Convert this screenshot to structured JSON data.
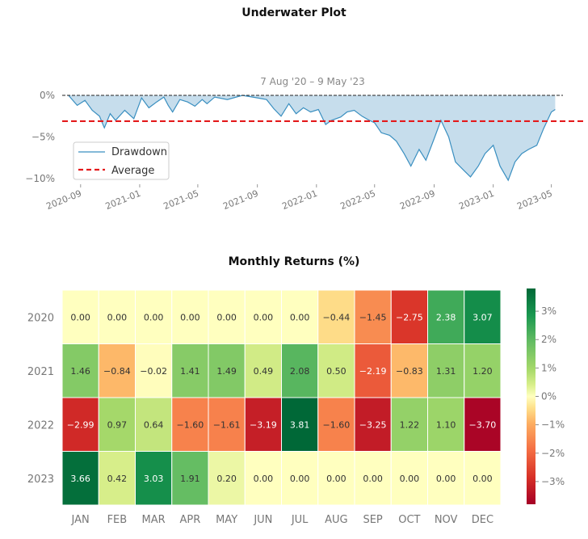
{
  "chart_data": [
    {
      "type": "area",
      "title": "Underwater Plot",
      "subtitle": "7 Aug '20 –  9 May '23",
      "xlabel": "",
      "ylabel": "",
      "y_ticks": [
        "0%",
        "−5%",
        "−10%"
      ],
      "ylim": [
        -10.5,
        0.5
      ],
      "x_ticks": [
        "2020-09",
        "2021-01",
        "2021-05",
        "2021-09",
        "2022-01",
        "2022-05",
        "2022-09",
        "2023-01",
        "2023-05"
      ],
      "legend": [
        "Drawdown",
        "Average"
      ],
      "legend_position": "lower-left",
      "average": -3.1,
      "series": [
        {
          "name": "Drawdown",
          "x": [
            "2020-08-07",
            "2020-08-25",
            "2020-09-10",
            "2020-09-25",
            "2020-10-10",
            "2020-10-20",
            "2020-11-01",
            "2020-11-12",
            "2020-12-01",
            "2020-12-20",
            "2021-01-05",
            "2021-01-20",
            "2021-02-05",
            "2021-02-20",
            "2021-03-01",
            "2021-03-10",
            "2021-03-25",
            "2021-04-10",
            "2021-04-25",
            "2021-05-10",
            "2021-05-20",
            "2021-06-05",
            "2021-07-01",
            "2021-08-01",
            "2021-09-01",
            "2021-09-20",
            "2021-10-05",
            "2021-10-20",
            "2021-11-05",
            "2021-11-20",
            "2021-12-05",
            "2021-12-20",
            "2022-01-05",
            "2022-01-20",
            "2022-02-01",
            "2022-02-20",
            "2022-03-05",
            "2022-03-20",
            "2022-04-05",
            "2022-04-20",
            "2022-05-01",
            "2022-05-15",
            "2022-06-01",
            "2022-06-15",
            "2022-07-01",
            "2022-07-15",
            "2022-08-01",
            "2022-08-15",
            "2022-09-01",
            "2022-09-15",
            "2022-10-01",
            "2022-10-15",
            "2022-11-01",
            "2022-11-15",
            "2022-12-01",
            "2022-12-15",
            "2023-01-01",
            "2023-01-15",
            "2023-02-01",
            "2023-02-15",
            "2023-03-01",
            "2023-03-15",
            "2023-04-01",
            "2023-04-15",
            "2023-05-01",
            "2023-05-09"
          ],
          "values": [
            0,
            -1.2,
            -0.6,
            -1.8,
            -2.5,
            -3.9,
            -2.2,
            -3.0,
            -1.8,
            -2.8,
            -0.3,
            -1.5,
            -0.8,
            -0.2,
            -1.2,
            -2.0,
            -0.5,
            -0.8,
            -1.3,
            -0.5,
            -1.0,
            -0.2,
            -0.5,
            0,
            -0.3,
            -0.5,
            -1.6,
            -2.5,
            -1.0,
            -2.2,
            -1.5,
            -2.0,
            -1.7,
            -3.5,
            -3.0,
            -2.6,
            -2.0,
            -1.8,
            -2.5,
            -3.0,
            -3.3,
            -4.5,
            -4.8,
            -5.5,
            -7.0,
            -8.5,
            -6.5,
            -7.8,
            -5.2,
            -3.0,
            -5.0,
            -8.0,
            -9.0,
            -9.8,
            -8.5,
            -7.0,
            -6.0,
            -8.5,
            -10.2,
            -8.0,
            -7.0,
            -6.5,
            -6.0,
            -4.0,
            -2.0,
            -1.7
          ]
        }
      ]
    },
    {
      "type": "heatmap",
      "title": "Monthly Returns (%)",
      "categories": [
        "JAN",
        "FEB",
        "MAR",
        "APR",
        "MAY",
        "JUN",
        "JUL",
        "AUG",
        "SEP",
        "OCT",
        "NOV",
        "DEC"
      ],
      "rows": [
        "2020",
        "2021",
        "2022",
        "2023"
      ],
      "values": [
        [
          0.0,
          0.0,
          0.0,
          0.0,
          0.0,
          0.0,
          0.0,
          -0.44,
          -1.45,
          -2.75,
          2.38,
          3.07
        ],
        [
          1.46,
          -0.84,
          -0.02,
          1.41,
          1.49,
          0.49,
          2.08,
          0.5,
          -2.19,
          -0.83,
          1.31,
          1.2
        ],
        [
          -2.99,
          0.97,
          0.64,
          -1.6,
          -1.61,
          -3.19,
          3.81,
          -1.6,
          -3.25,
          1.22,
          1.1,
          -3.7
        ],
        [
          3.66,
          0.42,
          3.03,
          1.91,
          0.2,
          0.0,
          0.0,
          0.0,
          0.0,
          0.0,
          0.0,
          0.0
        ]
      ],
      "labels": [
        [
          "0.00",
          "0.00",
          "0.00",
          "0.00",
          "0.00",
          "0.00",
          "0.00",
          "−0.44",
          "−1.45",
          "−2.75",
          "2.38",
          "3.07"
        ],
        [
          "1.46",
          "−0.84",
          "−0.02",
          "1.41",
          "1.49",
          "0.49",
          "2.08",
          "0.50",
          "−2.19",
          "−0.83",
          "1.31",
          "1.20"
        ],
        [
          "−2.99",
          "0.97",
          "0.64",
          "−1.60",
          "−1.61",
          "−3.19",
          "3.81",
          "−1.60",
          "−3.25",
          "1.22",
          "1.10",
          "−3.70"
        ],
        [
          "3.66",
          "0.42",
          "3.03",
          "1.91",
          "0.20",
          "0.00",
          "0.00",
          "0.00",
          "0.00",
          "0.00",
          "0.00",
          "0.00"
        ]
      ],
      "colorbar": {
        "range": [
          -3.8,
          3.8
        ],
        "ticks": [
          3,
          2,
          1,
          0,
          -1,
          -2,
          -3
        ],
        "tick_labels": [
          "3%",
          "2%",
          "1%",
          "0%",
          "−1%",
          "−2%",
          "−3%"
        ]
      }
    }
  ],
  "colors": {
    "drawdown_line": "#3a8fc0",
    "drawdown_fill": "#c6ddec",
    "average_line": "#e41a1c",
    "zero_line": "#222222",
    "tick_text": "#777777"
  }
}
